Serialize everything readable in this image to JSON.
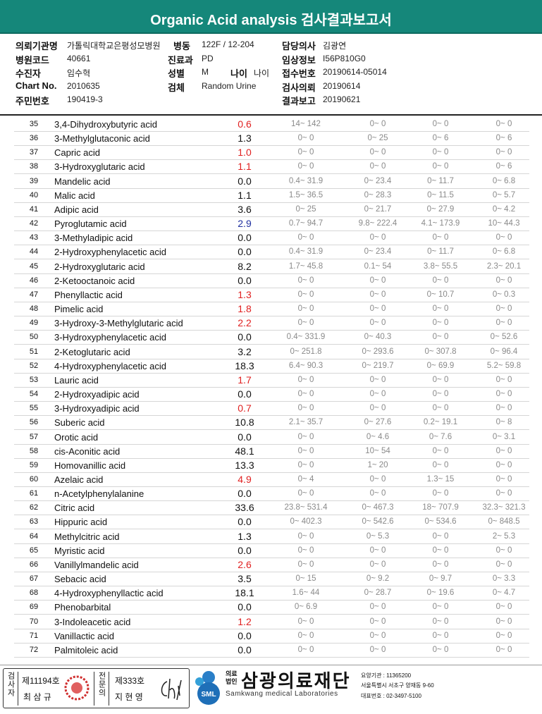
{
  "header": {
    "title": "Organic Acid analysis 검사결과보고서"
  },
  "info": [
    {
      "label": "의뢰기관명",
      "value": "가톨릭대학교은평성모병원"
    },
    {
      "label": "병동",
      "value": "122F / 12-204"
    },
    {
      "label": "담당의사",
      "value": "김광연"
    },
    {
      "label": "병원코드",
      "value": "40661"
    },
    {
      "label": "진료과",
      "value": "PD"
    },
    {
      "label": "임상정보",
      "value": "I56P810G0"
    },
    {
      "label": "수진자",
      "value": "임수혁"
    },
    {
      "label": "성별",
      "value": "M"
    },
    {
      "label": "나이",
      "value": "나이"
    },
    {
      "label": "접수번호",
      "value": "20190614-05014"
    },
    {
      "label": "Chart No.",
      "value": "2010635"
    },
    {
      "label": "검체",
      "value": "Random Urine"
    },
    {
      "label": "검사의뢰",
      "value": "20190614"
    },
    {
      "label": "주민번호",
      "value": "190419-3"
    },
    {
      "label": "결과보고",
      "value": "20190621"
    }
  ],
  "table": {
    "rows": [
      {
        "no": 35,
        "name": "3,4-Dihydroxybutyric acid",
        "value": "0.6",
        "color": "#e02020",
        "ranges": [
          "14~ 142",
          "0~ 0",
          "0~ 0",
          "0~ 0"
        ]
      },
      {
        "no": 36,
        "name": "3-Methylglutaconic acid",
        "value": "1.3",
        "color": "#111111",
        "ranges": [
          "0~ 0",
          "0~ 25",
          "0~ 6",
          "0~ 6"
        ]
      },
      {
        "no": 37,
        "name": "Capric acid",
        "value": "1.0",
        "color": "#e02020",
        "ranges": [
          "0~ 0",
          "0~ 0",
          "0~ 0",
          "0~ 0"
        ]
      },
      {
        "no": 38,
        "name": "3-Hydroxyglutaric acid",
        "value": "1.1",
        "color": "#e02020",
        "ranges": [
          "0~ 0",
          "0~ 0",
          "0~ 0",
          "0~ 6"
        ]
      },
      {
        "no": 39,
        "name": "Mandelic acid",
        "value": "0.0",
        "color": "#111111",
        "ranges": [
          "0.4~ 31.9",
          "0~ 23.4",
          "0~ 11.7",
          "0~ 6.8"
        ]
      },
      {
        "no": 40,
        "name": "Malic acid",
        "value": "1.1",
        "color": "#111111",
        "ranges": [
          "1.5~ 36.5",
          "0~ 28.3",
          "0~ 11.5",
          "0~ 5.7"
        ]
      },
      {
        "no": 41,
        "name": "Adipic acid",
        "value": "3.6",
        "color": "#111111",
        "ranges": [
          "0~ 25",
          "0~ 21.7",
          "0~ 27.9",
          "0~ 4.2"
        ]
      },
      {
        "no": 42,
        "name": "Pyroglutamic acid",
        "value": "2.9",
        "color": "#2030a0",
        "ranges": [
          "0.7~ 94.7",
          "9.8~ 222.4",
          "4.1~ 173.9",
          "10~ 44.3"
        ]
      },
      {
        "no": 43,
        "name": "3-Methyladipic acid",
        "value": "0.0",
        "color": "#111111",
        "ranges": [
          "0~ 0",
          "0~ 0",
          "0~ 0",
          "0~ 0"
        ]
      },
      {
        "no": 44,
        "name": "2-Hydroxyphenylacetic acid",
        "value": "0.0",
        "color": "#111111",
        "ranges": [
          "0.4~ 31.9",
          "0~ 23.4",
          "0~ 11.7",
          "0~ 6.8"
        ]
      },
      {
        "no": 45,
        "name": "2-Hydroxyglutaric acid",
        "value": "8.2",
        "color": "#111111",
        "ranges": [
          "1.7~ 45.8",
          "0.1~ 54",
          "3.8~ 55.5",
          "2.3~ 20.1"
        ]
      },
      {
        "no": 46,
        "name": "2-Ketooctanoic acid",
        "value": "0.0",
        "color": "#111111",
        "ranges": [
          "0~ 0",
          "0~ 0",
          "0~ 0",
          "0~ 0"
        ]
      },
      {
        "no": 47,
        "name": "Phenyllactic acid",
        "value": "1.3",
        "color": "#e02020",
        "ranges": [
          "0~ 0",
          "0~ 0",
          "0~ 10.7",
          "0~ 0.3"
        ]
      },
      {
        "no": 48,
        "name": "Pimelic acid",
        "value": "1.8",
        "color": "#e02020",
        "ranges": [
          "0~ 0",
          "0~ 0",
          "0~ 0",
          "0~ 0"
        ]
      },
      {
        "no": 49,
        "name": "3-Hydroxy-3-Methylglutaric acid",
        "value": "2.2",
        "color": "#e02020",
        "ranges": [
          "0~ 0",
          "0~ 0",
          "0~ 0",
          "0~ 0"
        ]
      },
      {
        "no": 50,
        "name": "3-Hydroxyphenylacetic acid",
        "value": "0.0",
        "color": "#111111",
        "ranges": [
          "0.4~ 331.9",
          "0~ 40.3",
          "0~ 0",
          "0~ 52.6"
        ]
      },
      {
        "no": 51,
        "name": "2-Ketoglutaric acid",
        "value": "3.2",
        "color": "#111111",
        "ranges": [
          "0~ 251.8",
          "0~ 293.6",
          "0~ 307.8",
          "0~ 96.4"
        ]
      },
      {
        "no": 52,
        "name": "4-Hydroxyphenylacetic acid",
        "value": "18.3",
        "color": "#111111",
        "ranges": [
          "6.4~ 90.3",
          "0~ 219.7",
          "0~ 69.9",
          "5.2~ 59.8"
        ]
      },
      {
        "no": 53,
        "name": "Lauric acid",
        "value": "1.7",
        "color": "#e02020",
        "ranges": [
          "0~ 0",
          "0~ 0",
          "0~ 0",
          "0~ 0"
        ]
      },
      {
        "no": 54,
        "name": "2-Hydroxyadipic acid",
        "value": "0.0",
        "color": "#111111",
        "ranges": [
          "0~ 0",
          "0~ 0",
          "0~ 0",
          "0~ 0"
        ]
      },
      {
        "no": 55,
        "name": "3-Hydroxyadipic acid",
        "value": "0.7",
        "color": "#e02020",
        "ranges": [
          "0~ 0",
          "0~ 0",
          "0~ 0",
          "0~ 0"
        ]
      },
      {
        "no": 56,
        "name": "Suberic acid",
        "value": "10.8",
        "color": "#111111",
        "ranges": [
          "2.1~ 35.7",
          "0~ 27.6",
          "0.2~ 19.1",
          "0~ 8"
        ]
      },
      {
        "no": 57,
        "name": "Orotic acid",
        "value": "0.0",
        "color": "#111111",
        "ranges": [
          "0~ 0",
          "0~ 4.6",
          "0~ 7.6",
          "0~ 3.1"
        ]
      },
      {
        "no": 58,
        "name": "cis-Aconitic acid",
        "value": "48.1",
        "color": "#111111",
        "ranges": [
          "0~ 0",
          "10~ 54",
          "0~ 0",
          "0~ 0"
        ]
      },
      {
        "no": 59,
        "name": "Homovanillic acid",
        "value": "13.3",
        "color": "#111111",
        "ranges": [
          "0~ 0",
          "1~ 20",
          "0~ 0",
          "0~ 0"
        ]
      },
      {
        "no": 60,
        "name": "Azelaic acid",
        "value": "4.9",
        "color": "#e02020",
        "ranges": [
          "0~ 4",
          "0~ 0",
          "1.3~ 15",
          "0~ 0"
        ]
      },
      {
        "no": 61,
        "name": "n-Acetylphenylalanine",
        "value": "0.0",
        "color": "#111111",
        "ranges": [
          "0~ 0",
          "0~ 0",
          "0~ 0",
          "0~ 0"
        ]
      },
      {
        "no": 62,
        "name": "Citric acid",
        "value": "33.6",
        "color": "#111111",
        "ranges": [
          "23.8~ 531.4",
          "0~ 467.3",
          "18~ 707.9",
          "32.3~ 321.3"
        ]
      },
      {
        "no": 63,
        "name": "Hippuric acid",
        "value": "0.0",
        "color": "#111111",
        "ranges": [
          "0~ 402.3",
          "0~ 542.6",
          "0~ 534.6",
          "0~ 848.5"
        ]
      },
      {
        "no": 64,
        "name": "Methylcitric acid",
        "value": "1.3",
        "color": "#111111",
        "ranges": [
          "0~ 0",
          "0~ 5.3",
          "0~ 0",
          "2~ 5.3"
        ]
      },
      {
        "no": 65,
        "name": "Myristic acid",
        "value": "0.0",
        "color": "#111111",
        "ranges": [
          "0~ 0",
          "0~ 0",
          "0~ 0",
          "0~ 0"
        ]
      },
      {
        "no": 66,
        "name": "Vanillylmandelic acid",
        "value": "2.6",
        "color": "#e02020",
        "ranges": [
          "0~ 0",
          "0~ 0",
          "0~ 0",
          "0~ 0"
        ]
      },
      {
        "no": 67,
        "name": "Sebacic acid",
        "value": "3.5",
        "color": "#111111",
        "ranges": [
          "0~ 15",
          "0~ 9.2",
          "0~ 9.7",
          "0~ 3.3"
        ]
      },
      {
        "no": 68,
        "name": "4-Hydroxyphenyllactic acid",
        "value": "18.1",
        "color": "#111111",
        "ranges": [
          "1.6~ 44",
          "0~ 28.7",
          "0~ 19.6",
          "0~ 4.7"
        ]
      },
      {
        "no": 69,
        "name": "Phenobarbital",
        "value": "0.0",
        "color": "#111111",
        "ranges": [
          "0~ 6.9",
          "0~ 0",
          "0~ 0",
          "0~ 0"
        ]
      },
      {
        "no": 70,
        "name": "3-Indoleacetic acid",
        "value": "1.2",
        "color": "#e02020",
        "ranges": [
          "0~ 0",
          "0~ 0",
          "0~ 0",
          "0~ 0"
        ]
      },
      {
        "no": 71,
        "name": "Vanillactic acid",
        "value": "0.0",
        "color": "#111111",
        "ranges": [
          "0~ 0",
          "0~ 0",
          "0~ 0",
          "0~ 0"
        ]
      },
      {
        "no": 72,
        "name": "Palmitoleic acid",
        "value": "0.0",
        "color": "#111111",
        "ranges": [
          "0~ 0",
          "0~ 0",
          "0~ 0",
          "0~ 0"
        ]
      }
    ]
  },
  "footer": {
    "tester_label": "검사자",
    "tester_no": "제11194호",
    "tester_name": "최 삼 규",
    "doctor_label": "전문의",
    "doctor_no": "제333호",
    "doctor_name": "지 현 영",
    "logo_mark": "SML",
    "logo_corp": "의료법인",
    "logo_name": "삼광의료재단",
    "logo_en": "Samkwang medical Laboratories",
    "code": "요양기관 : 11365200",
    "address": "서울특별시 서초구 양재동 9-60",
    "phone": "대표번호 : 02-3497-5100"
  }
}
